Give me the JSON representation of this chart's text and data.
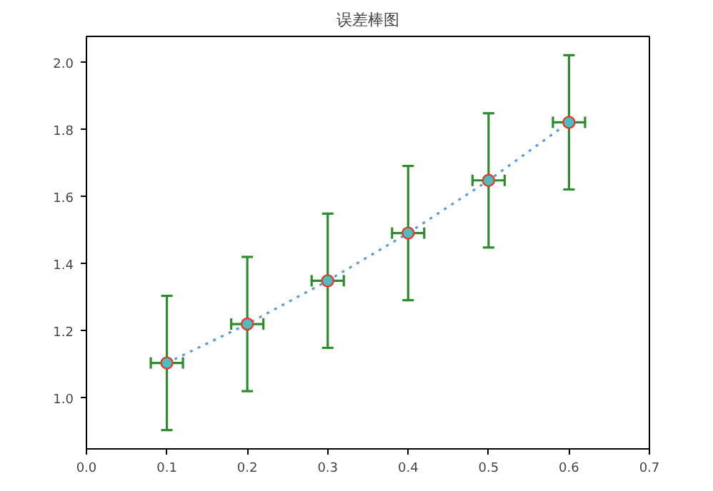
{
  "chart_data": {
    "type": "line",
    "title": "误差棒图",
    "x": [
      0.1,
      0.2,
      0.3,
      0.4,
      0.5,
      0.6
    ],
    "series": [
      {
        "color": "#5b9bd5",
        "values": [
          1.105,
          1.221,
          1.35,
          1.492,
          1.649,
          1.822
        ],
        "errors": [
          0.2,
          0.2,
          0.2,
          0.2,
          0.2,
          0.2
        ],
        "xerrors": [
          0.02,
          0.02,
          0.02,
          0.02,
          0.02,
          0.02
        ]
      }
    ],
    "marker": "circle",
    "line_style": "dotted",
    "grid": false,
    "xlim": [
      0.0,
      0.7
    ],
    "xticks": [
      {
        "value": 0.0,
        "label": "0.0"
      },
      0.1,
      0.2,
      0.3,
      0.4,
      0.5,
      0.6,
      0.7
    ],
    "ylim": [
      0.849,
      2.078
    ],
    "yticks": [
      {
        "value": 1.0,
        "label": "1.0"
      },
      1.2,
      1.4,
      1.6,
      1.8,
      {
        "value": 2.0,
        "label": "2.0"
      }
    ]
  }
}
